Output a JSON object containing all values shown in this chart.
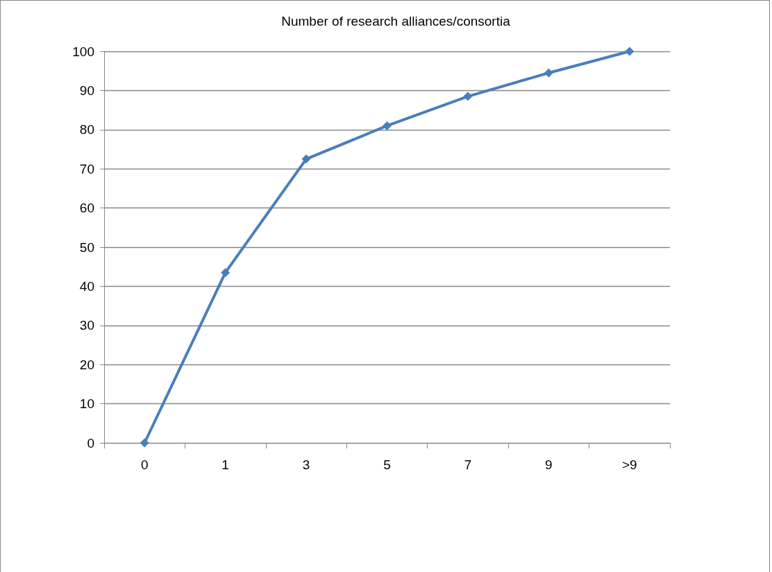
{
  "chart_data": {
    "type": "line",
    "title": "Number of research alliances/consortia",
    "categories": [
      "0",
      "1",
      "3",
      "5",
      "7",
      "9",
      ">9"
    ],
    "series": [
      {
        "color": "#4a7ebb",
        "values": [
          0,
          43.5,
          72.5,
          81,
          88.5,
          94.5,
          100
        ]
      }
    ],
    "ylim": [
      0,
      100
    ],
    "yticks": [
      0,
      10,
      20,
      30,
      40,
      50,
      60,
      70,
      80,
      90,
      100
    ],
    "grid": "y",
    "marker": "diamond",
    "line_style": "solid"
  }
}
